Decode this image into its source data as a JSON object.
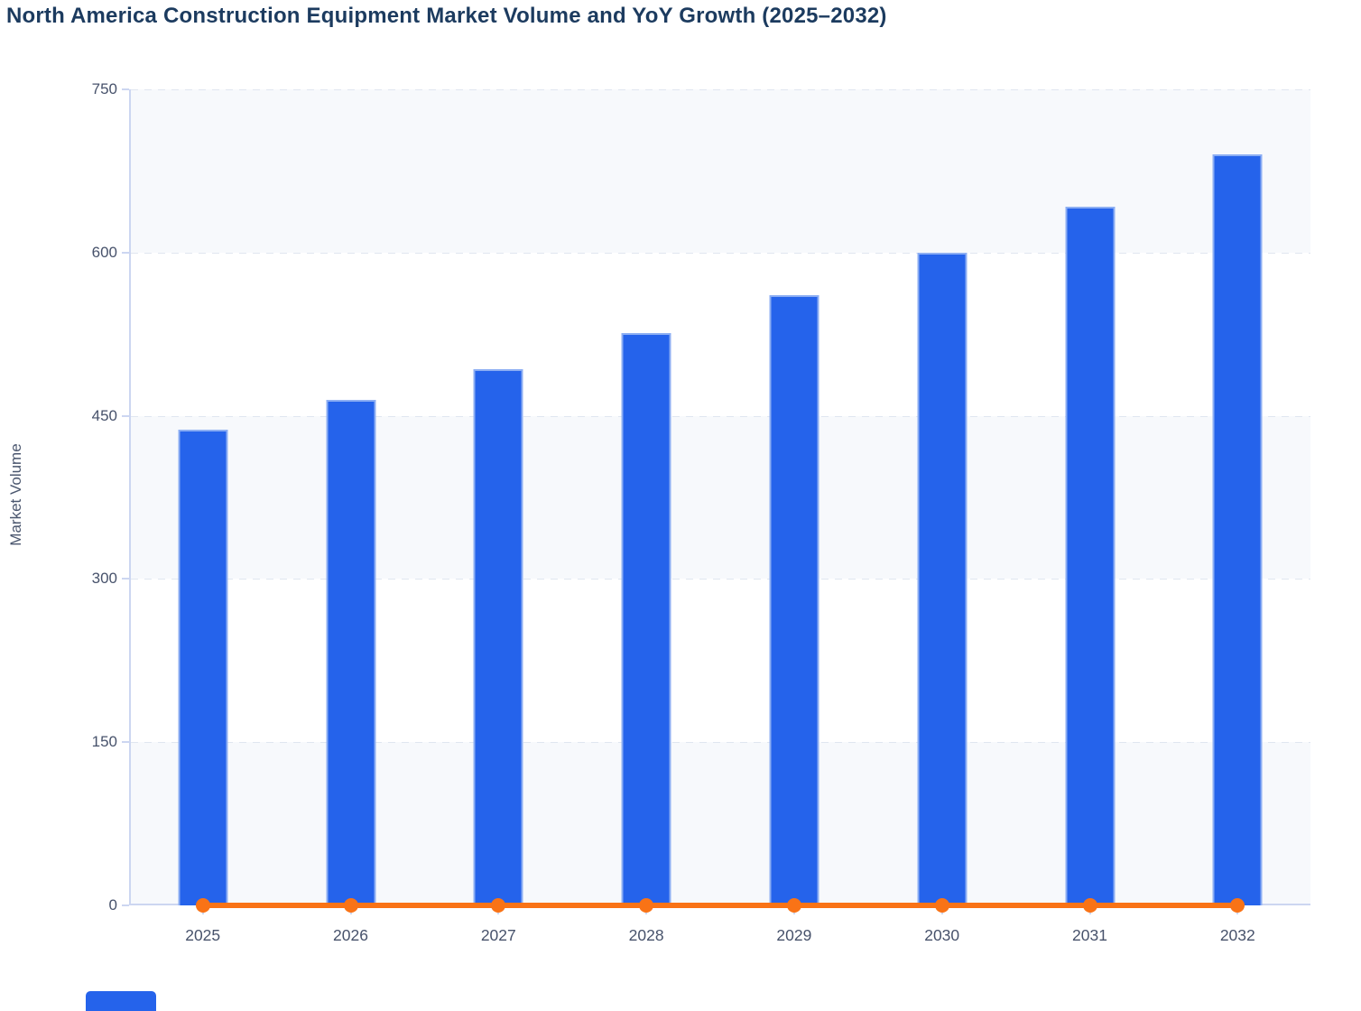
{
  "title": "North America Construction Equipment Market Volume and YoY Growth (2025–2032)",
  "y_axis": {
    "title": "Market Volume",
    "tick_labels": [
      "0",
      "150",
      "300",
      "450",
      "600",
      "750"
    ],
    "min": 0,
    "max": 750
  },
  "x_axis": {
    "tick_labels": [
      "2025",
      "2026",
      "2027",
      "2028",
      "2029",
      "2030",
      "2031",
      "2032"
    ]
  },
  "legend": {
    "cutoff_swatch_series": "Market Volume"
  },
  "colors": {
    "bar": "#2563eb",
    "bar_border": "rgba(166,193,245,0.8)",
    "line": "#f97316",
    "band_light": "#f7f9fc",
    "title": "#1c3b5f",
    "axis_text": "#47526b",
    "axis_line": "#ccd6f1",
    "gridline": "#e0e6f0"
  },
  "chart_data": {
    "type": "bar",
    "combo": "bar + line",
    "title": "North America Construction Equipment Market Volume and YoY Growth (2025–2032)",
    "categories": [
      "2025",
      "2026",
      "2027",
      "2028",
      "2029",
      "2030",
      "2031",
      "2032"
    ],
    "series": [
      {
        "name": "Market Volume",
        "type": "bar",
        "color": "#2563eb",
        "values": [
          437,
          465,
          493,
          526,
          561,
          600,
          642,
          690
        ]
      },
      {
        "name": "YoY Growth",
        "type": "line",
        "color": "#f97316",
        "values": [
          0,
          0,
          0,
          0,
          0,
          0,
          0,
          0
        ],
        "note": "orange line with circular markers renders flat along the zero baseline"
      }
    ],
    "xlabel": "",
    "ylabel": "Market Volume",
    "ylim": [
      0,
      750
    ],
    "yticks": [
      0,
      150,
      300,
      450,
      600,
      750
    ],
    "grid": "dashed horizontal gridlines; alternating horizontal background bands (0–150, 300–450, 600–750 shaded)",
    "legend_position": "bottom-left, cut off at image edge"
  }
}
